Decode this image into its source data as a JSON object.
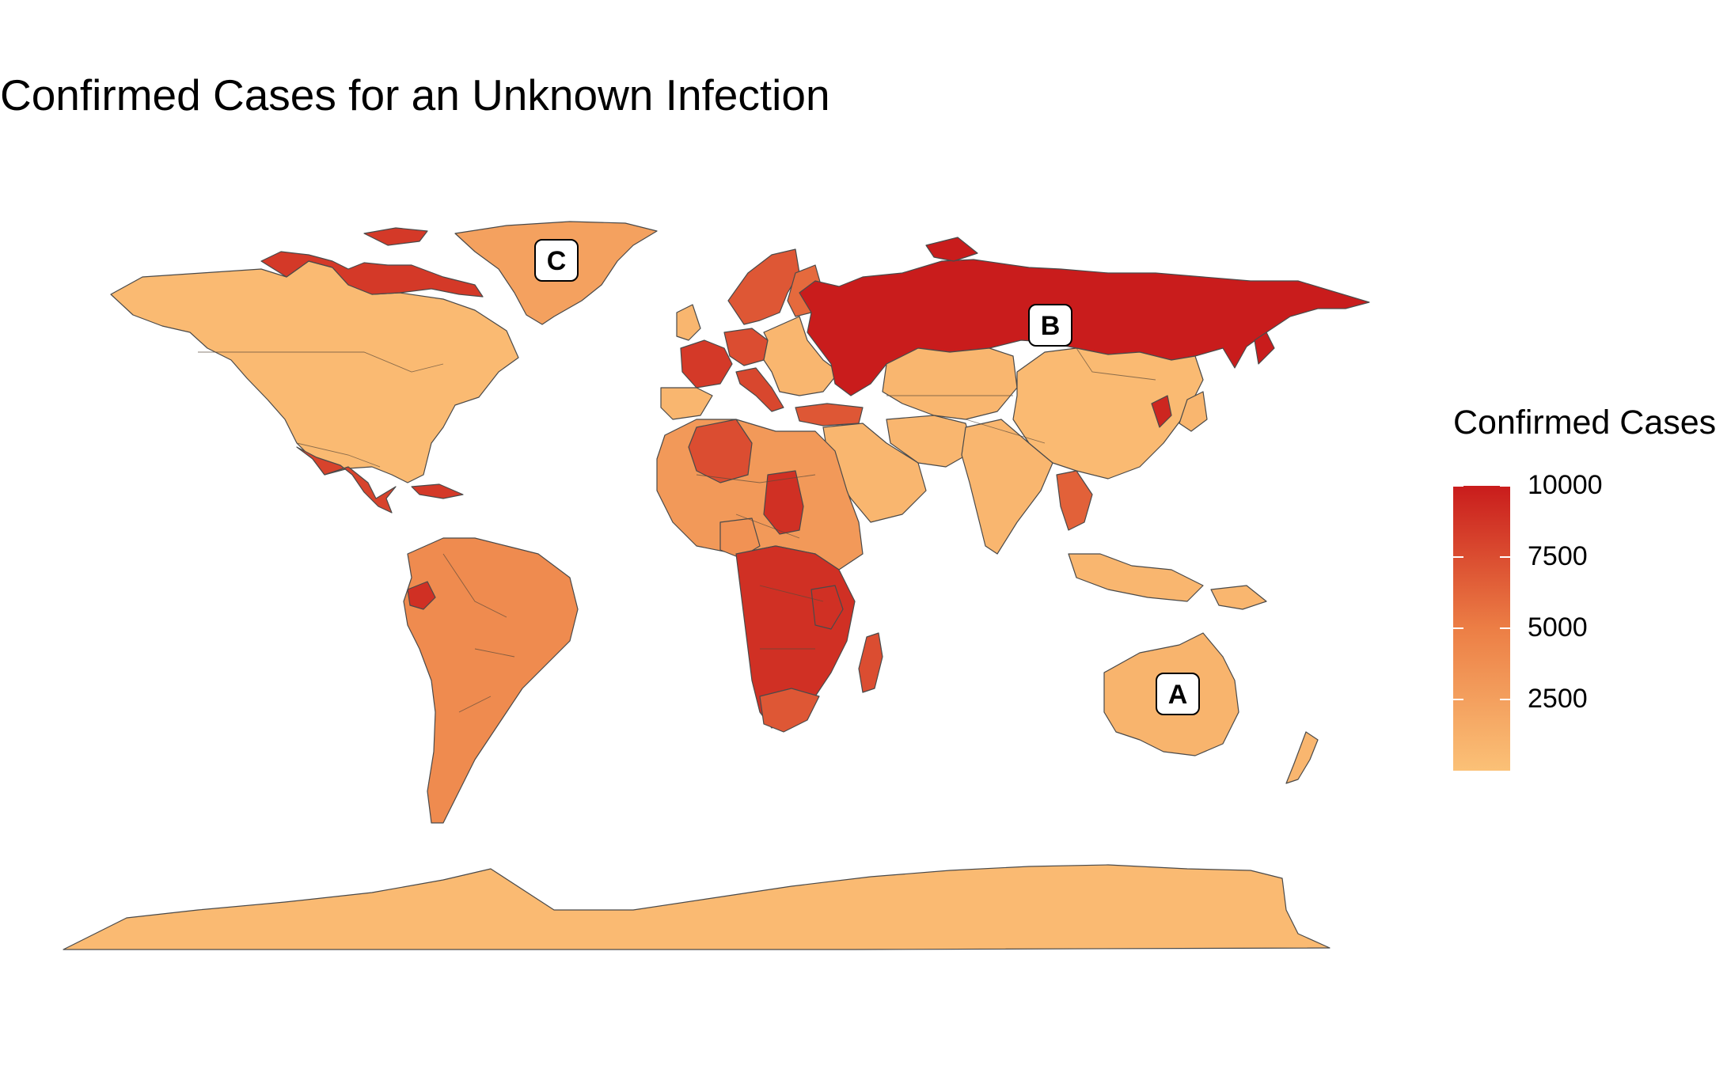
{
  "title": "Confirmed Cases for an Unknown Infection",
  "legend": {
    "title": "Confirmed Cases",
    "min_value": 0,
    "max_value": 10000,
    "ticks": [
      {
        "value": 10000,
        "label": "10000"
      },
      {
        "value": 7500,
        "label": "7500"
      },
      {
        "value": 5000,
        "label": "5000"
      },
      {
        "value": 2500,
        "label": "2500"
      }
    ],
    "color_low": "#fbc177",
    "color_mid": "#ec7e45",
    "color_high": "#c91c1c"
  },
  "markers": [
    {
      "label": "A",
      "region": "Australia"
    },
    {
      "label": "B",
      "region": "Russia"
    },
    {
      "label": "C",
      "region": "Greenland"
    }
  ],
  "map_data": {
    "type": "choropleth",
    "metric": "Confirmed Cases",
    "regions": [
      {
        "name": "Russia",
        "value": 10000
      },
      {
        "name": "Canada Arctic Islands",
        "value": 8500
      },
      {
        "name": "Greenland",
        "value": 2400
      },
      {
        "name": "Norway",
        "value": 7000
      },
      {
        "name": "Sweden",
        "value": 6000
      },
      {
        "name": "France",
        "value": 8500
      },
      {
        "name": "Germany",
        "value": 7500
      },
      {
        "name": "Italy",
        "value": 7800
      },
      {
        "name": "Turkey",
        "value": 7000
      },
      {
        "name": "Mexico",
        "value": 8000
      },
      {
        "name": "Cuba",
        "value": 8500
      },
      {
        "name": "Venezuela",
        "value": 4000
      },
      {
        "name": "Ecuador",
        "value": 9000
      },
      {
        "name": "Algeria",
        "value": 7500
      },
      {
        "name": "Chad",
        "value": 9000
      },
      {
        "name": "Nigeria",
        "value": 3500
      },
      {
        "name": "Egypt",
        "value": 3000
      },
      {
        "name": "Tanzania",
        "value": 9000
      },
      {
        "name": "Madagascar",
        "value": 7500
      },
      {
        "name": "South Africa",
        "value": 7000
      },
      {
        "name": "North Korea",
        "value": 9500
      },
      {
        "name": "Vietnam",
        "value": 6500
      },
      {
        "name": "Australia",
        "value": 1000
      },
      {
        "name": "United States",
        "value": 500
      },
      {
        "name": "China",
        "value": 500
      },
      {
        "name": "Antarctica",
        "value": 500
      }
    ]
  }
}
